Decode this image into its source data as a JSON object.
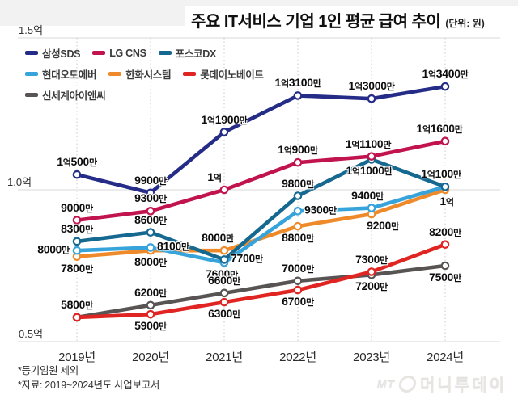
{
  "title": "주요 IT서비스 기업 1인 평균 급여 추이",
  "unit": "(단위: 원)",
  "footnotes": [
    "*등기임원 제외",
    "*자료: 2019~2024년도 사업보고서"
  ],
  "watermark": {
    "mt": "MT",
    "name": "머니투데이"
  },
  "chart_data": {
    "type": "line",
    "title": "주요 IT서비스 기업 1인 평균 급여 추이",
    "unit_label": "(단위: 원)",
    "categories": [
      "2019년",
      "2020년",
      "2021년",
      "2022년",
      "2023년",
      "2024년"
    ],
    "y_axis": {
      "ticks": [
        "1.5억",
        "1.0억",
        "0.5억"
      ],
      "tick_values": [
        15000,
        10000,
        5000
      ],
      "value_unit": "만원",
      "range": [
        5000,
        15000
      ]
    },
    "grid": true,
    "legend_position": "top-left",
    "series": [
      {
        "name": "삼성SDS",
        "color": "#252c88",
        "values": [
          10500,
          9900,
          11900,
          13100,
          13000,
          13400
        ],
        "labels": [
          "1억500만",
          "9900만",
          "1억1900만",
          "1억3100만",
          "1억3000만",
          "1억3400만"
        ]
      },
      {
        "name": "LG CNS",
        "color": "#c1134e",
        "values": [
          9000,
          9300,
          10000,
          10900,
          11100,
          11600
        ],
        "labels": [
          "9000만",
          "9300만",
          "1억",
          "1억900만",
          "1억1100만",
          "1억1600만"
        ]
      },
      {
        "name": "포스코DX",
        "color": "#15688f",
        "values": [
          8300,
          8600,
          7700,
          9800,
          11000,
          10100
        ],
        "labels": [
          "8300만",
          "8600만",
          "7700만",
          "9800만",
          "1억1000만",
          "1억100만"
        ]
      },
      {
        "name": "현대오토에버",
        "color": "#36a3da",
        "values": [
          8000,
          8100,
          7600,
          9300,
          9400,
          10100
        ],
        "labels": [
          "8000만",
          "8100만",
          "7600만",
          "9300만",
          "9400만",
          null
        ]
      },
      {
        "name": "한화시스템",
        "color": "#ef8a2a",
        "values": [
          7800,
          8000,
          8000,
          8800,
          9200,
          10000
        ],
        "labels": [
          "7800만",
          "8000만",
          "8000만",
          "8800만",
          "9200만",
          "1억"
        ]
      },
      {
        "name": "롯데이노베이트",
        "color": "#df2422",
        "values": [
          5800,
          5900,
          6300,
          6700,
          7300,
          8200
        ],
        "labels": [
          "5800만",
          "5900만",
          "6300만",
          "6700만",
          "7300만",
          "8200만"
        ]
      },
      {
        "name": "신세계아이앤씨",
        "color": "#595454",
        "values": [
          5800,
          6200,
          6600,
          7000,
          7200,
          7500
        ],
        "labels": [
          null,
          "6200만",
          "6600만",
          "7000만",
          "7200만",
          "7500만"
        ]
      }
    ]
  }
}
